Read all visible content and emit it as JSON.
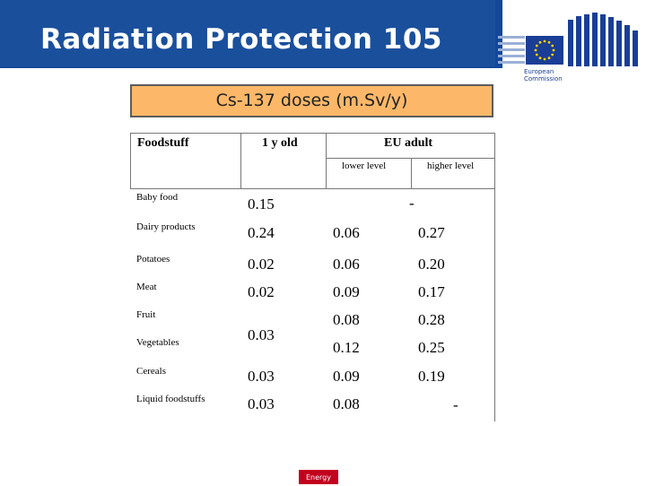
{
  "header": {
    "title": "Radiation Protection 105",
    "bg_color": "#1a4f9c"
  },
  "logo": {
    "line1": "European",
    "line2": "Commission",
    "icon": "european-commission-logo"
  },
  "subtitle": "Cs-137 doses (m.Sv/y)",
  "table": {
    "col_foodstuff": "Foodstuff",
    "col_1y": "1 y old",
    "col_eu": "EU adult",
    "sub_lower": "lower level",
    "sub_higher": "higher level",
    "rows": [
      {
        "name": "Baby food",
        "one_y": "0.15",
        "merged": "-"
      },
      {
        "name": "Dairy products",
        "one_y": "0.24",
        "lower": "0.06",
        "higher": "0.27"
      },
      {
        "name": "Potatoes",
        "one_y": "0.02",
        "lower": "0.06",
        "higher": "0.20"
      },
      {
        "name": "Meat",
        "one_y": "0.02",
        "lower": "0.09",
        "higher": "0.17"
      },
      {
        "name": "Fruit",
        "lower": "0.08",
        "higher": "0.28"
      },
      {
        "name": "Vegetables",
        "lower": "0.12",
        "higher": "0.25"
      },
      {
        "name": "Cereals",
        "one_y": "0.03",
        "lower": "0.09",
        "higher": "0.19"
      },
      {
        "name": "Liquid foodstuffs",
        "one_y": "0.03",
        "lower": "0.08",
        "higher": "-"
      }
    ],
    "fruit_veg_1y": "0.03"
  },
  "footer": {
    "badge": "Energy",
    "badge_color": "#c2001e"
  }
}
